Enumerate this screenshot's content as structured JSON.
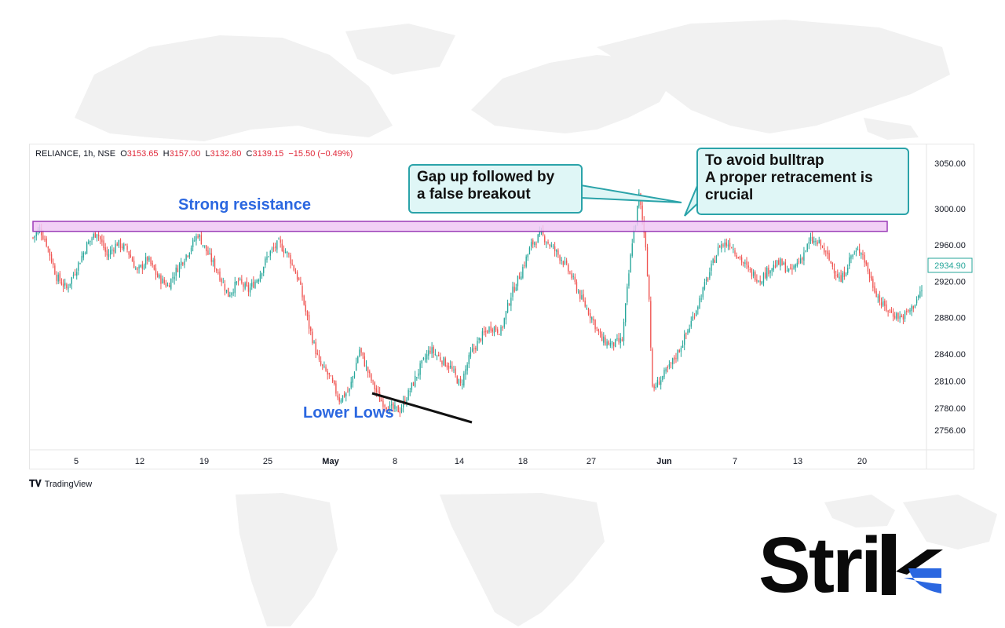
{
  "legend": {
    "symbol": "RELIANCE, 1h, NSE",
    "open_label": "O",
    "open": "3153.65",
    "high_label": "H",
    "high": "3157.00",
    "low_label": "L",
    "low": "3132.80",
    "close_label": "C",
    "close": "3139.15",
    "change": "−15.50 (−0.49%)"
  },
  "annotations": {
    "resistance": "Strong resistance",
    "lower_lows": "Lower Lows",
    "callout_gap": [
      "Gap up followed by",
      "a false breakout"
    ],
    "callout_bulltrap": [
      "To avoid bulltrap",
      "A proper retracement is",
      "crucial"
    ]
  },
  "footer": {
    "tradingview": "TradingView"
  },
  "brand": {
    "prefix": "Stri",
    "k_color": "#2b67e0"
  },
  "colors": {
    "up": "#26a69a",
    "down": "#ef5350",
    "resistance_fill": "#f0c8f5",
    "resistance_border": "#9b3cb8",
    "callout_border": "#2aa3a9"
  },
  "chart_data": {
    "type": "candlestick",
    "symbol": "RELIANCE",
    "interval": "1h",
    "exchange": "NSE",
    "x_tick_labels": [
      "5",
      "12",
      "19",
      "25",
      "May",
      "8",
      "14",
      "18",
      "27",
      "Jun",
      "7",
      "13",
      "20"
    ],
    "y_tick_labels": [
      "3050.00",
      "3000.00",
      "2960.00",
      "2920.00",
      "2880.00",
      "2840.00",
      "2810.00",
      "2780.00",
      "2756.00"
    ],
    "ylim": [
      2742,
      3068
    ],
    "last_price": "2934.90",
    "resistance_zone": [
      2975,
      2986
    ],
    "close_path": [
      [
        0,
        2968
      ],
      [
        4,
        2978
      ],
      [
        8,
        2962
      ],
      [
        14,
        2925
      ],
      [
        20,
        2912
      ],
      [
        26,
        2935
      ],
      [
        32,
        2960
      ],
      [
        38,
        2975
      ],
      [
        44,
        2948
      ],
      [
        50,
        2962
      ],
      [
        56,
        2955
      ],
      [
        62,
        2930
      ],
      [
        68,
        2945
      ],
      [
        74,
        2925
      ],
      [
        80,
        2915
      ],
      [
        86,
        2935
      ],
      [
        92,
        2952
      ],
      [
        98,
        2972
      ],
      [
        104,
        2950
      ],
      [
        110,
        2930
      ],
      [
        116,
        2905
      ],
      [
        122,
        2920
      ],
      [
        128,
        2910
      ],
      [
        134,
        2925
      ],
      [
        140,
        2950
      ],
      [
        146,
        2962
      ],
      [
        152,
        2948
      ],
      [
        158,
        2920
      ],
      [
        164,
        2870
      ],
      [
        170,
        2830
      ],
      [
        176,
        2815
      ],
      [
        182,
        2790
      ],
      [
        188,
        2800
      ],
      [
        194,
        2845
      ],
      [
        200,
        2815
      ],
      [
        206,
        2790
      ],
      [
        212,
        2780
      ],
      [
        218,
        2778
      ],
      [
        224,
        2800
      ],
      [
        230,
        2825
      ],
      [
        236,
        2845
      ],
      [
        242,
        2835
      ],
      [
        248,
        2825
      ],
      [
        254,
        2805
      ],
      [
        260,
        2840
      ],
      [
        266,
        2858
      ],
      [
        272,
        2870
      ],
      [
        278,
        2865
      ],
      [
        284,
        2905
      ],
      [
        290,
        2930
      ],
      [
        296,
        2960
      ],
      [
        302,
        2972
      ],
      [
        308,
        2958
      ],
      [
        314,
        2945
      ],
      [
        320,
        2925
      ],
      [
        326,
        2900
      ],
      [
        332,
        2880
      ],
      [
        338,
        2855
      ],
      [
        344,
        2850
      ],
      [
        350,
        2855
      ],
      [
        356,
        2965
      ],
      [
        358,
        2985
      ],
      [
        360,
        3015
      ],
      [
        364,
        2960
      ],
      [
        366,
        2900
      ],
      [
        368,
        2800
      ],
      [
        372,
        2810
      ],
      [
        378,
        2825
      ],
      [
        384,
        2845
      ],
      [
        390,
        2870
      ],
      [
        396,
        2900
      ],
      [
        402,
        2930
      ],
      [
        408,
        2960
      ],
      [
        414,
        2962
      ],
      [
        420,
        2945
      ],
      [
        426,
        2930
      ],
      [
        432,
        2922
      ],
      [
        438,
        2935
      ],
      [
        444,
        2940
      ],
      [
        450,
        2930
      ],
      [
        456,
        2945
      ],
      [
        462,
        2965
      ],
      [
        468,
        2960
      ],
      [
        474,
        2940
      ],
      [
        480,
        2920
      ],
      [
        486,
        2948
      ],
      [
        492,
        2955
      ],
      [
        498,
        2920
      ],
      [
        504,
        2895
      ],
      [
        510,
        2885
      ],
      [
        516,
        2880
      ],
      [
        522,
        2890
      ],
      [
        528,
        2910
      ]
    ]
  }
}
